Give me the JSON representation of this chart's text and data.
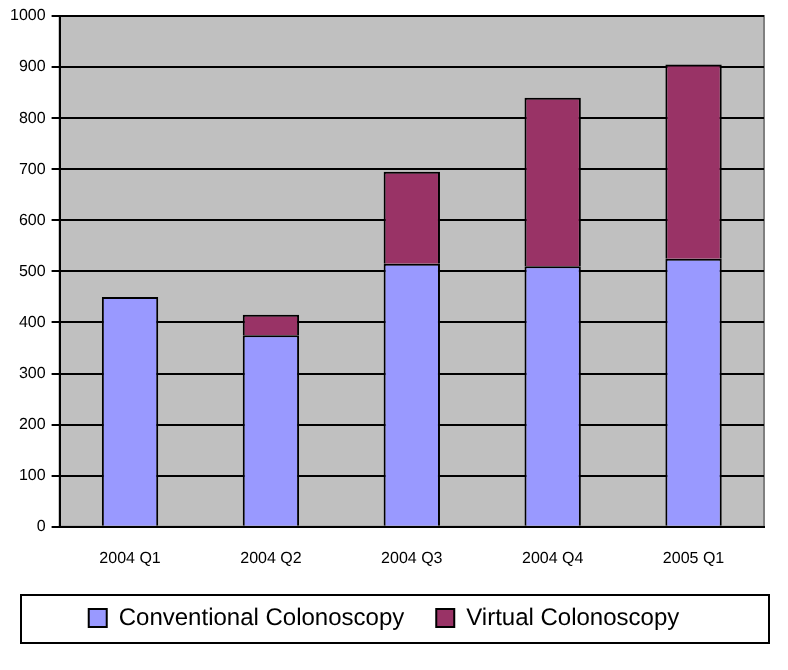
{
  "chart_data": {
    "type": "bar",
    "stacked": true,
    "categories": [
      "2004 Q1",
      "2004 Q2",
      "2004 Q3",
      "2004 Q4",
      "2005 Q1"
    ],
    "series": [
      {
        "name": "Conventional Colonoscopy",
        "color": "#9999ff",
        "values": [
          450,
          375,
          515,
          510,
          525
        ]
      },
      {
        "name": "Virtual Colonoscopy",
        "color": "#993366",
        "values": [
          0,
          40,
          180,
          330,
          380
        ]
      }
    ],
    "ylim": [
      0,
      1000
    ],
    "yticks": [
      0,
      100,
      200,
      300,
      400,
      500,
      600,
      700,
      800,
      900,
      1000
    ],
    "grid": "y",
    "legend": "bottom"
  }
}
